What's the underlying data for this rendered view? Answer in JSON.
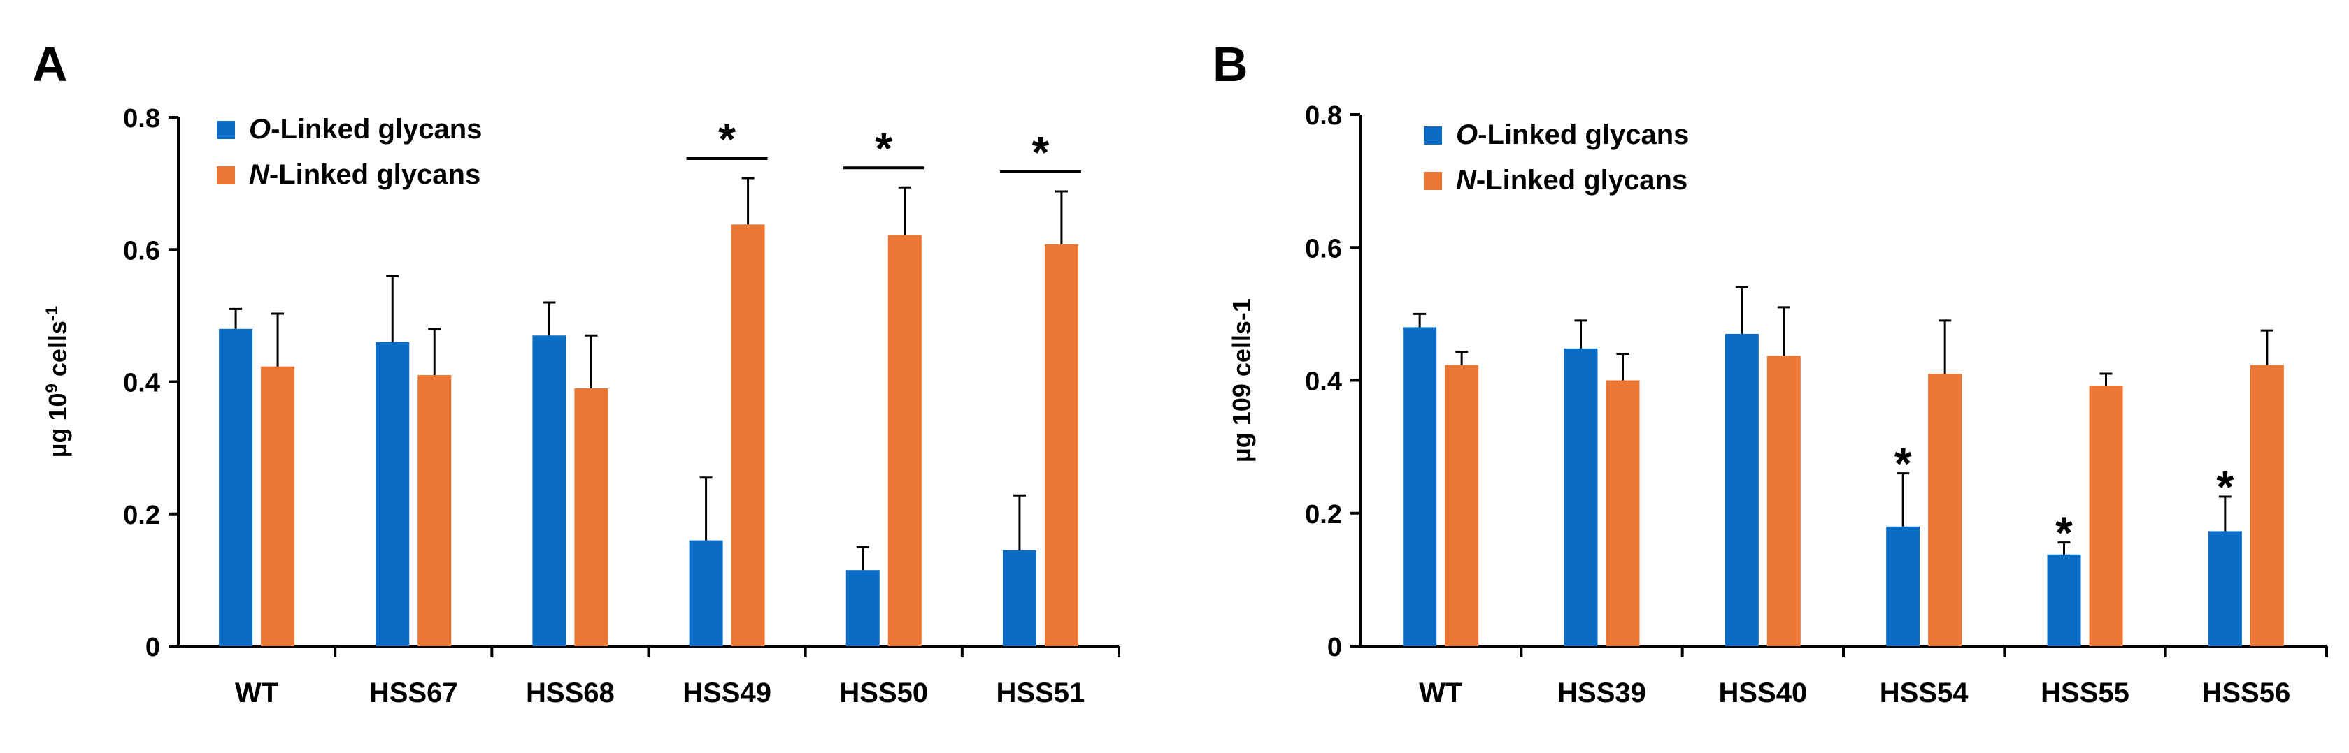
{
  "chart_data": [
    {
      "panel_label": "A",
      "type": "bar",
      "ylabel": "µg 10",
      "ylabel_sup": "9",
      "ylabel_rest": " cells",
      "ylabel_sup2": "-1",
      "ylim": [
        0,
        0.8
      ],
      "yticks": [
        "0",
        "0.2",
        "0.4",
        "0.6",
        "0.8"
      ],
      "categories": [
        "WT",
        "HSS67",
        "HSS68",
        "HSS49",
        "HSS50",
        "HSS51"
      ],
      "legend_position": "top-left",
      "series": [
        {
          "name_prefix": "O",
          "name_suffix": "-Linked glycans",
          "color": "#0a6cc4",
          "values": [
            0.48,
            0.46,
            0.47,
            0.16,
            0.115,
            0.145
          ],
          "errors": [
            0.03,
            0.1,
            0.05,
            0.095,
            0.035,
            0.083
          ]
        },
        {
          "name_prefix": "N",
          "name_suffix": "-Linked glycans",
          "color": "#ec7734",
          "values": [
            0.423,
            0.41,
            0.39,
            0.638,
            0.622,
            0.608
          ],
          "errors": [
            0.08,
            0.07,
            0.08,
            0.07,
            0.072,
            0.08
          ]
        }
      ],
      "significance": [
        {
          "category": "HSS49",
          "type": "bracket",
          "label": "*"
        },
        {
          "category": "HSS50",
          "type": "bracket",
          "label": "*"
        },
        {
          "category": "HSS51",
          "type": "bracket",
          "label": "*"
        }
      ]
    },
    {
      "panel_label": "B",
      "type": "bar",
      "ylabel": "µg 109 cells-1",
      "ylim": [
        0,
        0.8
      ],
      "yticks": [
        "0",
        "0.2",
        "0.4",
        "0.6",
        "0.8"
      ],
      "categories": [
        "WT",
        "HSS39",
        "HSS40",
        "HSS54",
        "HSS55",
        "HSS56"
      ],
      "legend_position": "top-left",
      "series": [
        {
          "name_prefix": "O",
          "name_suffix": "-Linked glycans",
          "color": "#0a6cc4",
          "values": [
            0.48,
            0.448,
            0.47,
            0.18,
            0.138,
            0.173
          ],
          "errors": [
            0.02,
            0.042,
            0.07,
            0.08,
            0.018,
            0.052
          ]
        },
        {
          "name_prefix": "N",
          "name_suffix": "-Linked glycans",
          "color": "#ec7734",
          "values": [
            0.423,
            0.4,
            0.437,
            0.41,
            0.392,
            0.423
          ],
          "errors": [
            0.02,
            0.04,
            0.073,
            0.08,
            0.018,
            0.052
          ]
        }
      ],
      "significance": [
        {
          "category": "HSS54",
          "type": "star-over-series-0",
          "label": "*"
        },
        {
          "category": "HSS55",
          "type": "star-over-series-0",
          "label": "*"
        },
        {
          "category": "HSS56",
          "type": "star-over-series-0",
          "label": "*"
        }
      ]
    }
  ]
}
